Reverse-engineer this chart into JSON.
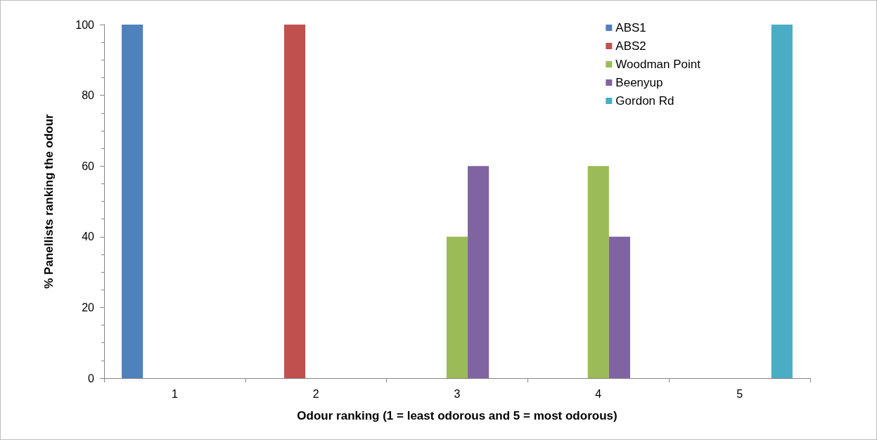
{
  "chart_data": {
    "type": "bar",
    "xlabel": "Odour ranking (1 = least odorous and 5 = most odorous)",
    "ylabel": "% Panellists ranking the odour",
    "categories": [
      "1",
      "2",
      "3",
      "4",
      "5"
    ],
    "series": [
      {
        "name": "ABS1",
        "color": "#4f81bd",
        "values": [
          100,
          0,
          0,
          0,
          0
        ]
      },
      {
        "name": "ABS2",
        "color": "#c0504d",
        "values": [
          0,
          100,
          0,
          0,
          0
        ]
      },
      {
        "name": "Woodman Point",
        "color": "#9bbb59",
        "values": [
          0,
          0,
          40,
          60,
          0
        ]
      },
      {
        "name": "Beenyup",
        "color": "#8064a2",
        "values": [
          0,
          0,
          60,
          40,
          0
        ]
      },
      {
        "name": "Gordon Rd",
        "color": "#4bacc6",
        "values": [
          0,
          0,
          0,
          0,
          100
        ]
      }
    ],
    "ylim": [
      0,
      100
    ],
    "yticks": [
      0,
      20,
      40,
      60,
      80,
      100
    ],
    "grid": false,
    "legend": "top right"
  }
}
